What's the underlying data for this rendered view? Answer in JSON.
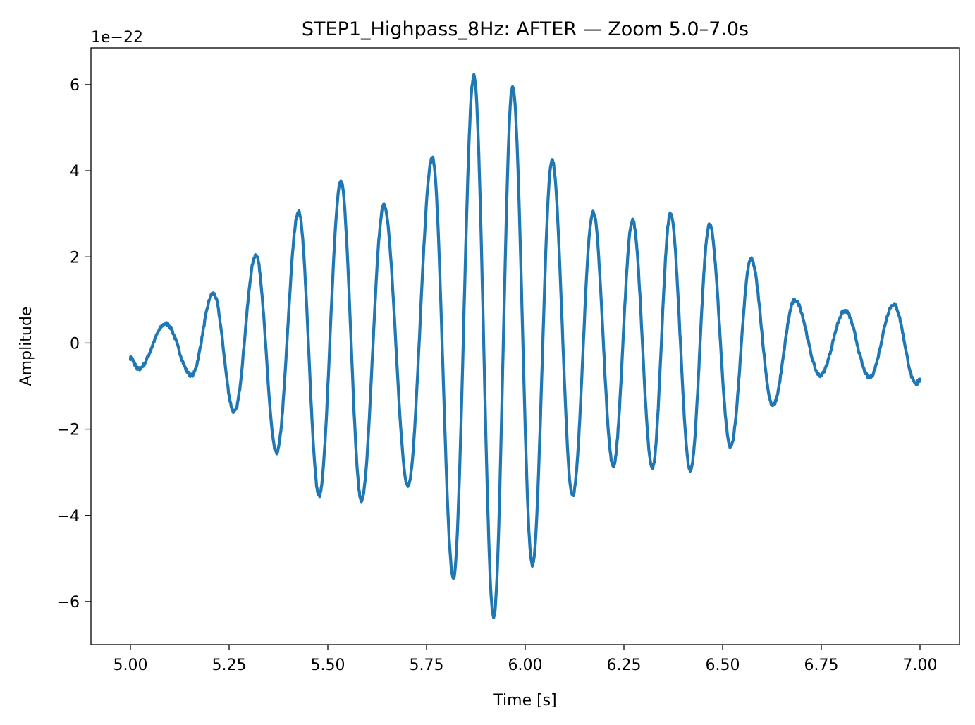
{
  "chart_data": {
    "type": "line",
    "title": "STEP1_Highpass_8Hz: AFTER — Zoom 5.0–7.0s",
    "xlabel": "Time [s]",
    "ylabel": "Amplitude",
    "y_offset_label": "1e−22",
    "xlim": [
      4.9,
      7.1
    ],
    "ylim": [
      -7.0,
      6.85
    ],
    "x_ticks": [
      5.0,
      5.25,
      5.5,
      5.75,
      6.0,
      6.25,
      6.5,
      6.75,
      7.0
    ],
    "x_tick_labels": [
      "5.00",
      "5.25",
      "5.50",
      "5.75",
      "6.00",
      "6.25",
      "6.50",
      "6.75",
      "7.00"
    ],
    "y_ticks": [
      -6,
      -4,
      -2,
      0,
      2,
      4,
      6
    ],
    "y_tick_labels": [
      "−6",
      "−4",
      "−2",
      "0",
      "2",
      "4",
      "6"
    ],
    "grid": false,
    "series": [
      {
        "color": "#1f77b4",
        "x": [
          5.0,
          5.02,
          5.09,
          5.155,
          5.21,
          5.263,
          5.318,
          5.37,
          5.426,
          5.478,
          5.533,
          5.585,
          5.642,
          5.703,
          5.765,
          5.818,
          5.87,
          5.92,
          5.968,
          6.018,
          6.068,
          6.12,
          6.172,
          6.223,
          6.272,
          6.322,
          6.368,
          6.418,
          6.467,
          6.52,
          6.572,
          6.627,
          6.683,
          6.747,
          6.81,
          6.872,
          6.933,
          6.99,
          7.0
        ],
        "values": [
          -0.35,
          -0.6,
          0.45,
          -0.75,
          1.15,
          -1.6,
          2.05,
          -2.55,
          3.05,
          -3.55,
          3.75,
          -3.65,
          3.2,
          -3.3,
          4.3,
          -5.45,
          6.2,
          -6.35,
          5.95,
          -5.15,
          4.25,
          -3.55,
          3.05,
          -2.85,
          2.85,
          -2.9,
          3.0,
          -2.95,
          2.75,
          -2.4,
          1.95,
          -1.45,
          1.0,
          -0.75,
          0.75,
          -0.8,
          0.9,
          -0.95,
          -0.85
        ]
      }
    ]
  }
}
